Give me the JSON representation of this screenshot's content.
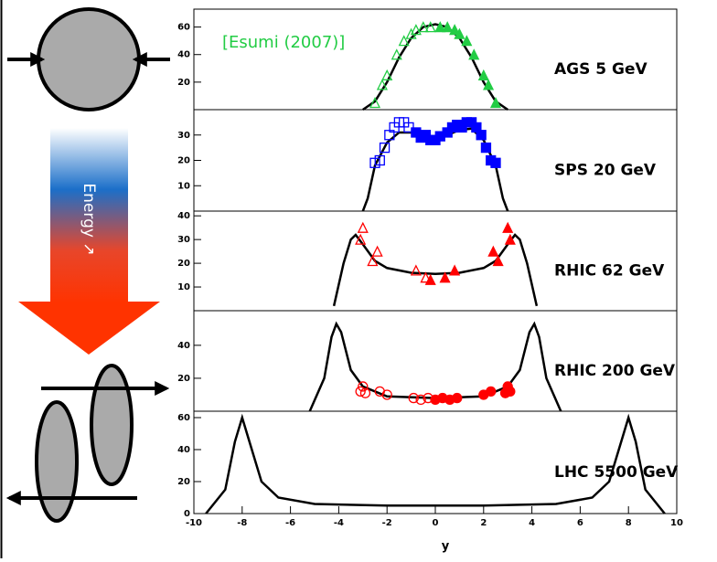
{
  "diagram": {
    "label": "Energy ↗"
  },
  "chart_data": [
    {
      "type": "line",
      "label": "AGS 5 GeV",
      "annotation": "[Esumi (2007)]",
      "xlim": [
        -10,
        10
      ],
      "ylim": [
        0,
        73
      ],
      "yticks": [
        20,
        40,
        60
      ],
      "series": [
        {
          "type": "line",
          "color": "#000000",
          "x": [
            -3,
            -2.5,
            -2,
            -1.5,
            -1,
            -0.5,
            0,
            0.5,
            1,
            1.5,
            2,
            2.5,
            3
          ],
          "values": [
            0,
            6,
            20,
            38,
            52,
            60,
            62,
            60,
            52,
            38,
            20,
            6,
            0
          ]
        },
        {
          "type": "scatter",
          "marker": "triangle-open",
          "color": "#22cc44",
          "x": [
            -2.5,
            -2.2,
            -2.0,
            -1.6,
            -1.3,
            -1.0,
            -0.8,
            -0.5,
            -0.2
          ],
          "values": [
            5,
            18,
            25,
            40,
            50,
            55,
            58,
            60,
            60
          ]
        },
        {
          "type": "scatter",
          "marker": "triangle-filled",
          "color": "#22cc44",
          "x": [
            0.2,
            0.5,
            0.8,
            1.0,
            1.3,
            1.6,
            2.0,
            2.2,
            2.5
          ],
          "values": [
            60,
            60,
            58,
            55,
            50,
            40,
            25,
            18,
            5
          ]
        }
      ]
    },
    {
      "type": "line",
      "label": "SPS 20 GeV",
      "xlim": [
        -10,
        10
      ],
      "ylim": [
        0,
        40
      ],
      "yticks": [
        10,
        20,
        30
      ],
      "series": [
        {
          "type": "line",
          "color": "#000000",
          "x": [
            -3,
            -2.8,
            -2.5,
            -2,
            -1.5,
            -1,
            -0.5,
            0,
            0.5,
            1,
            1.5,
            2,
            2.5,
            2.8,
            3
          ],
          "values": [
            0,
            5,
            18,
            27,
            31,
            31,
            29.5,
            29,
            30,
            32,
            32.5,
            28,
            18,
            5,
            0
          ]
        },
        {
          "type": "scatter",
          "marker": "square-open",
          "color": "#0000ff",
          "x": [
            -2.5,
            -2.3,
            -2.1,
            -1.9,
            -1.7,
            -1.5,
            -1.3,
            -1.1
          ],
          "values": [
            19,
            20,
            25,
            30,
            33,
            35,
            35,
            33
          ]
        },
        {
          "type": "scatter",
          "marker": "square-filled",
          "color": "#0000ff",
          "x": [
            -0.8,
            -0.6,
            -0.4,
            -0.2,
            0,
            0.2,
            0.5,
            0.7,
            0.9,
            1.1,
            1.3,
            1.5,
            1.7,
            1.9,
            2.1,
            2.3,
            2.5
          ],
          "values": [
            31,
            29,
            30,
            28,
            28,
            29.5,
            31,
            33,
            34,
            33,
            35,
            35,
            33,
            30,
            25,
            20,
            19
          ]
        }
      ]
    },
    {
      "type": "line",
      "label": "RHIC 62 GeV",
      "xlim": [
        -10,
        10
      ],
      "ylim": [
        0,
        42
      ],
      "yticks": [
        10,
        20,
        30,
        40
      ],
      "series": [
        {
          "type": "line",
          "color": "#000000",
          "x": [
            -4.2,
            -3.8,
            -3.5,
            -3.3,
            -3,
            -2.5,
            -2,
            -1,
            0,
            1,
            2,
            2.5,
            3,
            3.3,
            3.5,
            3.8,
            4.2
          ],
          "values": [
            2,
            20,
            30,
            32,
            28,
            21,
            18,
            16,
            15.5,
            16,
            18,
            21,
            28,
            32,
            30,
            20,
            2
          ]
        },
        {
          "type": "scatter",
          "marker": "triangle-open",
          "color": "#ff0000",
          "x": [
            -3.1,
            -3.0,
            -2.6,
            -2.4,
            -0.8,
            -0.4
          ],
          "values": [
            30,
            35,
            21,
            25,
            17,
            14
          ]
        },
        {
          "type": "scatter",
          "marker": "triangle-filled",
          "color": "#ff0000",
          "x": [
            -0.2,
            0.4,
            0.8,
            2.4,
            2.6,
            3.0,
            3.1
          ],
          "values": [
            13,
            14,
            17,
            25,
            21,
            35,
            30
          ]
        }
      ]
    },
    {
      "type": "line",
      "label": "RHIC 200 GeV",
      "xlim": [
        -10,
        10
      ],
      "ylim": [
        0,
        61
      ],
      "yticks": [
        20,
        40
      ],
      "series": [
        {
          "type": "line",
          "color": "#000000",
          "x": [
            -5.2,
            -4.6,
            -4.3,
            -4.1,
            -3.9,
            -3.5,
            -3,
            -2,
            0,
            2,
            3,
            3.5,
            3.9,
            4.1,
            4.3,
            4.6,
            5.2
          ],
          "values": [
            0,
            20,
            45,
            53,
            48,
            25,
            15,
            9,
            8,
            9,
            15,
            25,
            48,
            53,
            45,
            20,
            0
          ]
        },
        {
          "type": "scatter",
          "marker": "circle-open",
          "color": "#ff0000",
          "x": [
            -3.1,
            -3.0,
            -2.9,
            -2.3,
            -2.0,
            -0.9,
            -0.6,
            -0.3
          ],
          "values": [
            12,
            15,
            11,
            12,
            10,
            8,
            7,
            8
          ]
        },
        {
          "type": "scatter",
          "marker": "circle-filled",
          "color": "#ff0000",
          "x": [
            0,
            0.3,
            0.6,
            0.9,
            2.0,
            2.3,
            2.9,
            3.0,
            3.1
          ],
          "values": [
            7,
            8,
            7,
            8,
            10,
            12,
            11,
            15,
            12
          ]
        }
      ]
    },
    {
      "type": "line",
      "label": "LHC 5500 GeV",
      "xlabel": "y",
      "xlim": [
        -10,
        10
      ],
      "ylim": [
        0,
        64
      ],
      "yticks": [
        0,
        20,
        40,
        60
      ],
      "xticks": [
        -10,
        -8,
        -6,
        -4,
        -2,
        0,
        2,
        4,
        6,
        8,
        10
      ],
      "series": [
        {
          "type": "line",
          "color": "#000000",
          "x": [
            -9.5,
            -8.7,
            -8.3,
            -8,
            -7.7,
            -7.2,
            -6.5,
            -5,
            -2,
            0,
            2,
            5,
            6.5,
            7.2,
            7.7,
            8,
            8.3,
            8.7,
            9.5
          ],
          "values": [
            0,
            15,
            45,
            60,
            45,
            20,
            10,
            6,
            5,
            5,
            5,
            6,
            10,
            20,
            45,
            60,
            45,
            15,
            0
          ]
        }
      ]
    }
  ]
}
